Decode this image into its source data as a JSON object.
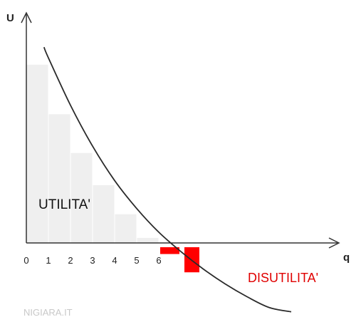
{
  "chart_data": {
    "type": "bar",
    "ylabel": "U",
    "xlabel": "q",
    "x_ticks": [
      "0",
      "1",
      "2",
      "3",
      "4",
      "5",
      "6"
    ],
    "positive_bars": [
      {
        "q": 1,
        "value": 8.3
      },
      {
        "q": 2,
        "value": 6.0
      },
      {
        "q": 3,
        "value": 4.2
      },
      {
        "q": 4,
        "value": 2.7
      },
      {
        "q": 5,
        "value": 1.35
      },
      {
        "q": 6,
        "value": 0.25
      }
    ],
    "negative_bars": [
      {
        "q": 7,
        "value": -0.25
      },
      {
        "q": 8,
        "value": -1.1
      }
    ],
    "curve": {
      "x": [
        0.8,
        1,
        2,
        3,
        4,
        5,
        6,
        7,
        8,
        9,
        10,
        11,
        12.0
      ],
      "y": [
        9.1,
        8.6,
        6.4,
        4.5,
        2.9,
        1.6,
        0.5,
        -0.4,
        -1.2,
        -1.9,
        -2.5,
        -3.0,
        -3.2
      ]
    },
    "xlim": [
      0,
      14
    ],
    "ylim": [
      -3.6,
      10.8
    ],
    "colors": {
      "positive": "#efefef",
      "negative": "#ff0000",
      "curve": "#2a2a2a",
      "axis": "#333333"
    },
    "annotations": {
      "utility": "UTILITA'",
      "disutility": "DISUTILITA'"
    },
    "credit": "NIGIARA.IT"
  }
}
